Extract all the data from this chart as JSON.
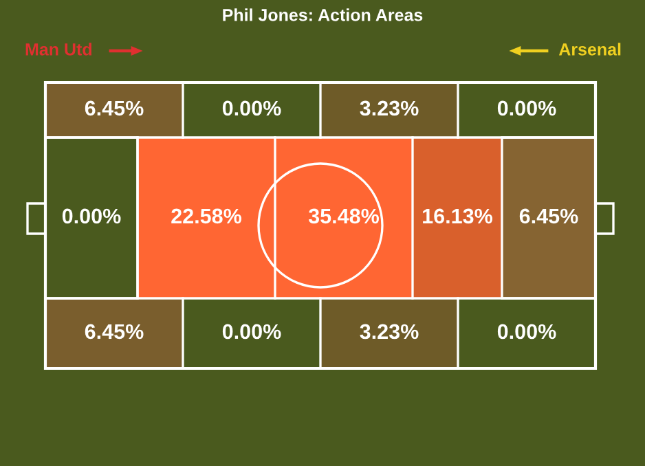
{
  "chart_data": {
    "type": "other",
    "title": "Phil Jones: Action Areas",
    "annotations": [
      "Man Utd",
      "Arsenal"
    ],
    "values": [
      6.45,
      0.0,
      3.23,
      0.0,
      0.0,
      22.58,
      35.48,
      16.13,
      6.45,
      6.45,
      0.0,
      3.23,
      0.0
    ],
    "value_labels": [
      "6.45%",
      "0.00%",
      "3.23%",
      "0.00%",
      "0.00%",
      "22.58%",
      "35.48%",
      "16.13%",
      "6.45%",
      "6.45%",
      "0.00%",
      "3.23%",
      "0.00%"
    ],
    "colors": [
      "#8a6032",
      null,
      "#7f5c2e",
      null,
      null,
      "#ff6633",
      "#ff6633",
      "#d9602c",
      "#9a6838",
      "#8a6032",
      null,
      "#7f5c2e",
      null
    ]
  }
}
